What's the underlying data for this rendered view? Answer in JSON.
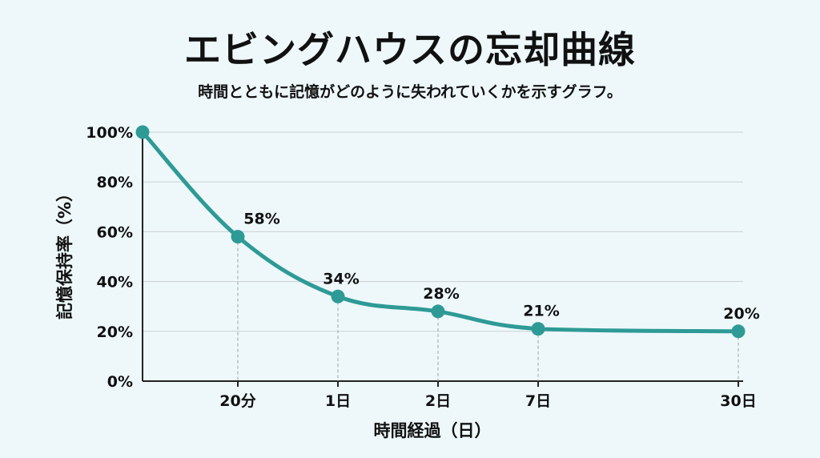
{
  "title": "エビングハウスの忘却曲線",
  "subtitle": "時間とともに記憶がどのように失われていくかを示すグラフ。",
  "colors": {
    "background": "#eef8fb",
    "line": "#2e9a96",
    "grid": "#c9cfd2",
    "axis": "#222222"
  },
  "chart_data": {
    "type": "line",
    "title": "エビングハウスの忘却曲線",
    "xlabel": "時間経過（日）",
    "ylabel": "記憶保持率（%）",
    "ylim": [
      0,
      100
    ],
    "y_ticks": [
      0,
      20,
      40,
      60,
      80,
      100
    ],
    "y_tick_labels": [
      "0%",
      "20%",
      "40%",
      "60%",
      "80%",
      "100%"
    ],
    "x_ticks": [
      "20分",
      "1日",
      "2日",
      "7日",
      "30日"
    ],
    "grid": true,
    "series": [
      {
        "name": "記憶保持率",
        "points": [
          {
            "x": "0",
            "y": 100,
            "label": ""
          },
          {
            "x": "20分",
            "y": 58,
            "label": "58%"
          },
          {
            "x": "1日",
            "y": 34,
            "label": "34%"
          },
          {
            "x": "2日",
            "y": 28,
            "label": "28%"
          },
          {
            "x": "7日",
            "y": 21,
            "label": "21%"
          },
          {
            "x": "30日",
            "y": 20,
            "label": "20%"
          }
        ]
      }
    ]
  }
}
